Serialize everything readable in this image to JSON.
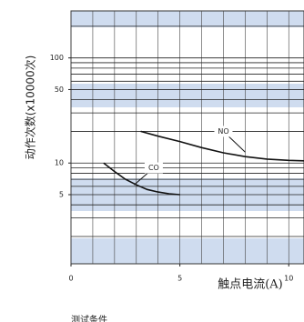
{
  "chart_data": {
    "type": "line",
    "x_label": "触点电流(A)",
    "y_label": "动作次数(x10000次)",
    "footnote": "测试条件",
    "log_y": true,
    "grid": true,
    "xlim": [
      0,
      10.7
    ],
    "ylim": [
      1.1,
      280
    ],
    "xticks": [
      0,
      5,
      10
    ],
    "yticks": [
      5,
      10,
      50,
      100
    ],
    "xgrid": [
      0,
      1,
      2,
      3,
      4,
      5,
      6,
      7,
      8,
      9,
      10
    ],
    "ygrid": [
      2,
      3,
      4,
      5,
      6,
      7,
      8,
      9,
      10,
      20,
      30,
      40,
      50,
      60,
      70,
      80,
      90,
      100,
      200
    ],
    "series": [
      {
        "name": "NO",
        "color": "#111111",
        "x": [
          3.2,
          4,
          5,
          6,
          7,
          8,
          9,
          10,
          10.7
        ],
        "values": [
          20,
          18,
          16,
          14,
          12.5,
          11.5,
          10.9,
          10.6,
          10.5
        ]
      },
      {
        "name": "CO",
        "color": "#111111",
        "x": [
          1.5,
          2,
          2.5,
          3,
          3.5,
          4,
          4.5,
          5
        ],
        "values": [
          10,
          8.3,
          7,
          6.2,
          5.6,
          5.3,
          5.1,
          5.0
        ]
      }
    ],
    "annotations": [
      {
        "text": "NO",
        "x": 8,
        "y": 12.7,
        "tx": 7,
        "ty": 20
      },
      {
        "text": "CO",
        "x": 2.9,
        "y": 6.2,
        "tx": 3.8,
        "ty": 9
      }
    ]
  }
}
